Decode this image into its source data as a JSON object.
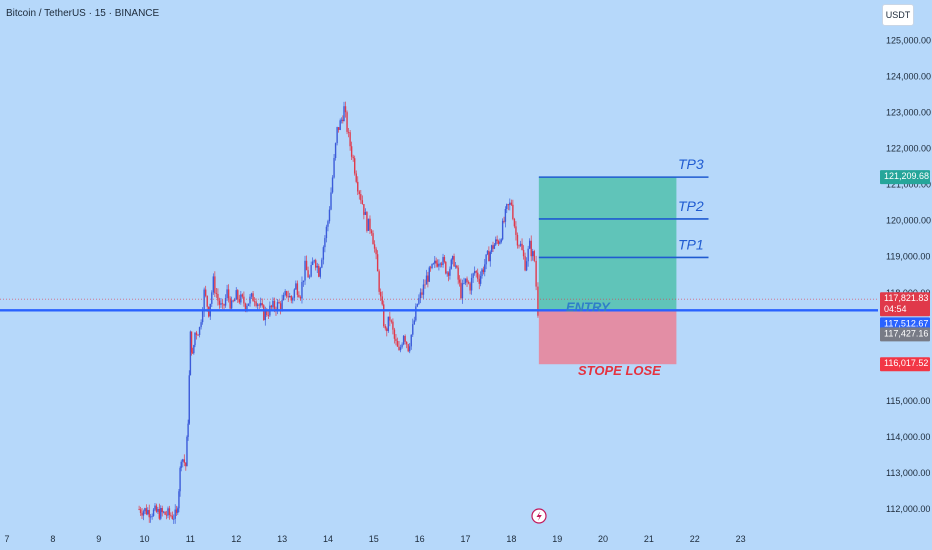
{
  "header": {
    "symbol_title": "Bitcoin / TetherUS · 15 · BINANCE",
    "currency": "USDT"
  },
  "colors": {
    "background": "#b6d8fa",
    "candle_up": "#3b5bd9",
    "candle_down": "#e0394a",
    "entry_line": "#2962ff",
    "profit_zone": "#5cc3b5",
    "loss_zone": "#e68aa0",
    "tp_line": "#1f5bd1",
    "badge_tp": "#26a69a",
    "badge_current": "#e0394a",
    "badge_entry": "#2962ff",
    "badge_gray": "#787b86",
    "badge_stop": "#f23645"
  },
  "chart_data": {
    "type": "candlestick",
    "y_axis": {
      "ticks": [
        "112,000.00",
        "113,000.00",
        "114,000.00",
        "115,000.00",
        "116,000.00",
        "117,000.00",
        "118,000.00",
        "119,000.00",
        "120,000.00",
        "121,000.00",
        "122,000.00",
        "123,000.00",
        "124,000.00",
        "125,000.00"
      ],
      "range": [
        111700,
        125400
      ]
    },
    "x_axis": {
      "ticks": [
        "7",
        "8",
        "9",
        "10",
        "11",
        "12",
        "13",
        "14",
        "15",
        "16",
        "17",
        "18",
        "19",
        "20",
        "21",
        "22",
        "23"
      ],
      "range": [
        7,
        23.4
      ]
    },
    "price_path": [
      [
        9.85,
        112000
      ],
      [
        10.7,
        111800
      ],
      [
        10.75,
        112600
      ],
      [
        10.8,
        113500
      ],
      [
        10.9,
        113200
      ],
      [
        10.95,
        114500
      ],
      [
        11.0,
        116800
      ],
      [
        11.05,
        116200
      ],
      [
        11.1,
        116900
      ],
      [
        11.2,
        117000
      ],
      [
        11.3,
        118000
      ],
      [
        11.4,
        117500
      ],
      [
        11.5,
        118300
      ],
      [
        11.6,
        117800
      ],
      [
        11.7,
        117500
      ],
      [
        11.8,
        118000
      ],
      [
        11.9,
        117600
      ],
      [
        12.0,
        117900
      ],
      [
        12.2,
        117700
      ],
      [
        12.4,
        117900
      ],
      [
        12.6,
        117400
      ],
      [
        12.8,
        117600
      ],
      [
        13.0,
        117700
      ],
      [
        13.1,
        118000
      ],
      [
        13.2,
        117800
      ],
      [
        13.3,
        118200
      ],
      [
        13.4,
        118000
      ],
      [
        13.5,
        118700
      ],
      [
        13.6,
        118400
      ],
      [
        13.7,
        119000
      ],
      [
        13.8,
        118600
      ],
      [
        13.9,
        119300
      ],
      [
        14.0,
        120000
      ],
      [
        14.1,
        121200
      ],
      [
        14.2,
        122500
      ],
      [
        14.3,
        122800
      ],
      [
        14.35,
        123100
      ],
      [
        14.45,
        122300
      ],
      [
        14.55,
        121700
      ],
      [
        14.65,
        121000
      ],
      [
        14.75,
        120500
      ],
      [
        14.85,
        119900
      ],
      [
        14.95,
        119800
      ],
      [
        15.05,
        118900
      ],
      [
        15.15,
        117800
      ],
      [
        15.25,
        116900
      ],
      [
        15.35,
        117300
      ],
      [
        15.45,
        116700
      ],
      [
        15.55,
        116300
      ],
      [
        15.65,
        116900
      ],
      [
        15.75,
        116500
      ],
      [
        15.85,
        117000
      ],
      [
        15.95,
        117700
      ],
      [
        16.05,
        118000
      ],
      [
        16.15,
        118400
      ],
      [
        16.3,
        118700
      ],
      [
        16.45,
        119000
      ],
      [
        16.6,
        118600
      ],
      [
        16.75,
        118900
      ],
      [
        16.9,
        118000
      ],
      [
        17.0,
        118300
      ],
      [
        17.1,
        118200
      ],
      [
        17.2,
        118600
      ],
      [
        17.3,
        118400
      ],
      [
        17.45,
        118900
      ],
      [
        17.6,
        119300
      ],
      [
        17.75,
        119500
      ],
      [
        17.9,
        120300
      ],
      [
        18.0,
        120500
      ],
      [
        18.1,
        119600
      ],
      [
        18.2,
        119300
      ],
      [
        18.3,
        118800
      ],
      [
        18.4,
        119300
      ],
      [
        18.5,
        118900
      ],
      [
        18.58,
        117500
      ]
    ],
    "positions": {
      "tp3": 121209.68,
      "tp2": 120050,
      "tp1": 118980,
      "current": 117821.83,
      "entry": 117512.67,
      "gray": 117427.16,
      "stop": 116017.52,
      "zone_x_start": 18.6,
      "zone_x_end": 21.6,
      "tp_line_end": 22.3
    },
    "annotations": {
      "tp3": "TP3",
      "tp2": "TP2",
      "tp1": "TP1",
      "entry": "ENTRY",
      "stop": "STOPE LOSE"
    },
    "price_badges": {
      "tp3": "121,209.68",
      "current": "117,821.83",
      "countdown": "04:54",
      "entry": "117,512.67",
      "gray": "117,427.16",
      "stop": "116,017.52"
    },
    "grid": false,
    "legend": "none"
  }
}
